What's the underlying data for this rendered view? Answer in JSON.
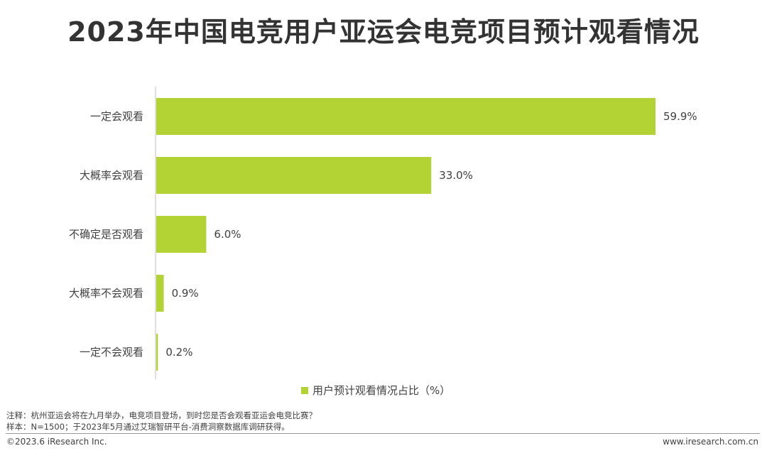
{
  "title": "2023年中国电竞用户亚运会电竞项目预计观看情况",
  "chart_data": {
    "type": "bar",
    "orientation": "horizontal",
    "categories": [
      "一定会观看",
      "大概率会观看",
      "不确定是否观看",
      "大概率不会观看",
      "一定不会观看"
    ],
    "series": [
      {
        "name": "用户预计观看情况占比（%）",
        "values": [
          59.9,
          33.0,
          6.0,
          0.9,
          0.2
        ],
        "value_labels": [
          "59.9%",
          "33.0%",
          "6.0%",
          "0.9%",
          "0.2%"
        ]
      }
    ],
    "xlim": [
      0,
      60
    ],
    "grid": false,
    "legend_position": "bottom",
    "bar_color": "#b3d334"
  },
  "legend": {
    "label": "用户预计观看情况占比（%）"
  },
  "notes": {
    "line1": "注释：杭州亚运会将在九月举办，电竞项目登场，到时您是否会观看亚运会电竞比赛？",
    "line2": "样本：N=1500；于2023年5月通过艾瑞智研平台-消费洞察数据库调研获得。"
  },
  "footer": {
    "copyright": "©2023.6 iResearch Inc.",
    "url": "www.iresearch.com.cn"
  }
}
